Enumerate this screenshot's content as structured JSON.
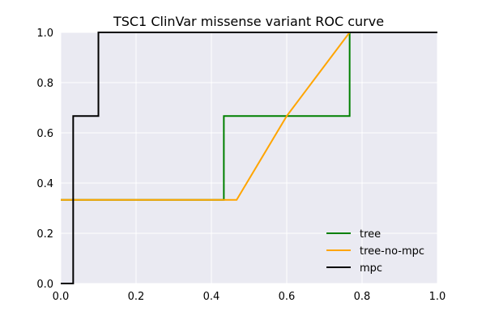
{
  "chart_data": {
    "type": "line",
    "title": "TSC1 ClinVar missense variant ROC curve",
    "xlabel": "",
    "ylabel": "",
    "xlim": [
      0,
      1
    ],
    "ylim": [
      0,
      1
    ],
    "x_ticks": [
      0,
      0.2,
      0.4,
      0.6,
      0.8,
      1.0
    ],
    "y_ticks": [
      0,
      0.2,
      0.4,
      0.6,
      0.8,
      1.0
    ],
    "x_tick_labels": [
      "0.0",
      "0.2",
      "0.4",
      "0.6",
      "0.8",
      "1.0"
    ],
    "y_tick_labels": [
      "0.0",
      "0.2",
      "0.4",
      "0.6",
      "0.8",
      "1.0"
    ],
    "grid": true,
    "legend_position": "lower-right",
    "background": "#EAEAF2",
    "grid_color": "#FFFFFF",
    "series": [
      {
        "name": "tree",
        "color": "#008000",
        "x": [
          0.0,
          0.433,
          0.433,
          0.767,
          0.767,
          1.0
        ],
        "y": [
          0.333,
          0.333,
          0.667,
          0.667,
          1.0,
          1.0
        ]
      },
      {
        "name": "tree-no-mpc",
        "color": "#FFA500",
        "x": [
          0.0,
          0.467,
          0.6,
          0.767,
          1.0
        ],
        "y": [
          0.333,
          0.333,
          0.667,
          1.0,
          1.0
        ]
      },
      {
        "name": "mpc",
        "color": "#000000",
        "x": [
          0.0,
          0.033,
          0.033,
          0.1,
          0.1,
          1.0
        ],
        "y": [
          0.0,
          0.0,
          0.667,
          0.667,
          1.0,
          1.0
        ]
      }
    ]
  }
}
